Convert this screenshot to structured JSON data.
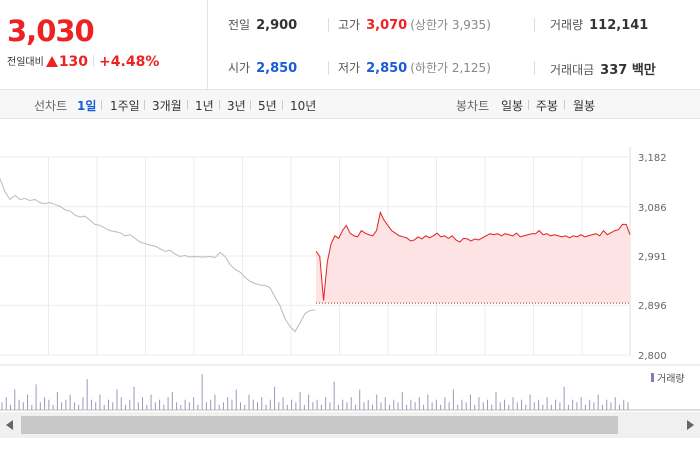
{
  "quote": {
    "price": "3,030",
    "change_label": "전일대비",
    "change": "130",
    "change_pct": "+4.48%"
  },
  "stats": {
    "prev_close": {
      "label": "전일",
      "value": "2,900"
    },
    "high": {
      "label": "고가",
      "value": "3,070",
      "sub": "(상한가 3,935)"
    },
    "volume": {
      "label": "거래량",
      "value": "112,141"
    },
    "open": {
      "label": "시가",
      "value": "2,850"
    },
    "low": {
      "label": "저가",
      "value": "2,850",
      "sub": "(하한가 2,125)"
    },
    "turnover": {
      "label": "거래대금",
      "value": "337 백만"
    }
  },
  "period_bar": {
    "line_label": "선차트",
    "line_periods": [
      "1일",
      "1주일",
      "3개월",
      "1년",
      "3년",
      "5년",
      "10년"
    ],
    "active_period": "1일",
    "candle_label": "봉차트",
    "candle_periods": [
      "일봉",
      "주봉",
      "월봉"
    ]
  },
  "chart_data": {
    "type": "line",
    "title": "",
    "y_ticks": [
      2800,
      2896,
      2991,
      3086,
      3182
    ],
    "y_tick_labels": [
      "2,800",
      "2,896",
      "2,991",
      "3,086",
      "3,182"
    ],
    "ylim": [
      2800,
      3182
    ],
    "prev_close": 2900,
    "legend": "거래량",
    "colors": {
      "previous_day": "#bbbbbb",
      "today": "#e22222",
      "fill": "#fde3e3",
      "volume": "#9999bb"
    },
    "series": [
      {
        "values": [
          3140,
          3115,
          3100,
          3108,
          3100,
          3102,
          3098,
          3100,
          3094,
          3092,
          3094,
          3090,
          3087,
          3080,
          3078,
          3070,
          3066,
          3068,
          3060,
          3052,
          3050,
          3045,
          3040,
          3038,
          3036,
          3030,
          3032,
          3025,
          3018,
          3015,
          3012,
          3010,
          3005,
          3000,
          3002,
          2995,
          2990,
          2992,
          2989,
          2990,
          2989,
          2989,
          2990,
          2988,
          2998,
          2990,
          2975,
          2965,
          2960,
          2950,
          2942,
          2938,
          2935,
          2934,
          2930,
          2912,
          2895,
          2870,
          2855,
          2845,
          2862,
          2880,
          2886,
          2887
        ]
      },
      {
        "values": [
          3000,
          2990,
          2905,
          2980,
          3015,
          3030,
          3025,
          3040,
          3050,
          3035,
          3030,
          3028,
          3040,
          3035,
          3032,
          3030,
          3040,
          3075,
          3060,
          3050,
          3040,
          3035,
          3030,
          3028,
          3026,
          3020,
          3022,
          3028,
          3024,
          3030,
          3026,
          3030,
          3035,
          3028,
          3030,
          3025,
          3030,
          3022,
          3018,
          3025,
          3024,
          3020,
          3024,
          3022,
          3026,
          3030,
          3034,
          3032,
          3034,
          3030,
          3034,
          3032,
          3030,
          3035,
          3028,
          3030,
          3032,
          3034,
          3034,
          3040,
          3032,
          3034,
          3030,
          3032,
          3030,
          3028,
          3030,
          3026,
          3030,
          3028,
          3032,
          3028,
          3030,
          3032,
          3034,
          3030,
          3040,
          3032,
          3036,
          3040,
          3042,
          3052,
          3052,
          3032
        ]
      }
    ],
    "volume": [
      3,
      5,
      2,
      8,
      4,
      3,
      6,
      2,
      10,
      3,
      5,
      4,
      2,
      7,
      3,
      4,
      6,
      3,
      2,
      5,
      12,
      4,
      3,
      6,
      2,
      4,
      3,
      8,
      5,
      2,
      4,
      9,
      3,
      5,
      2,
      6,
      3,
      4,
      2,
      5,
      7,
      3,
      2,
      4,
      3,
      5,
      2,
      14,
      3,
      4,
      6,
      2,
      3,
      5,
      4,
      8,
      3,
      2,
      6,
      4,
      3,
      5,
      2,
      4,
      9,
      3,
      5,
      2,
      4,
      3,
      7,
      2,
      6,
      3,
      4,
      2,
      5,
      3,
      11,
      2,
      4,
      3,
      5,
      2,
      8,
      3,
      4,
      2,
      6,
      3,
      5,
      2,
      4,
      3,
      7,
      2,
      4,
      3,
      5,
      2,
      6,
      3,
      4,
      2,
      5,
      3,
      8,
      2,
      4,
      3,
      6,
      2,
      5,
      3,
      4,
      2,
      7,
      3,
      4,
      2,
      5,
      3,
      4,
      2,
      6,
      3,
      4,
      2,
      5,
      2,
      4,
      3,
      9,
      2,
      4,
      3,
      5,
      2,
      4,
      3,
      6,
      2,
      4,
      3,
      5,
      2,
      4,
      3
    ]
  }
}
